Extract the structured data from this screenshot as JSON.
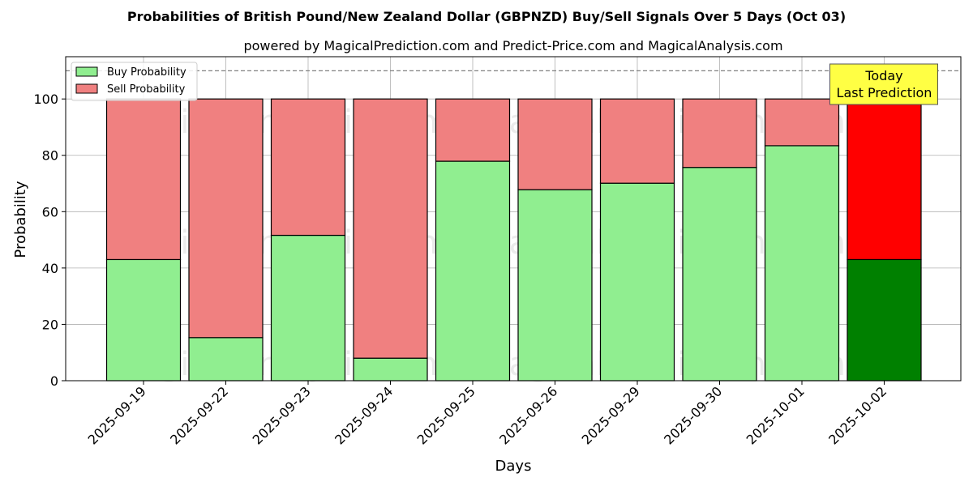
{
  "chart_data": {
    "type": "bar",
    "stacked": true,
    "title": "Probabilities of British Pound/New Zealand Dollar (GBPNZD) Buy/Sell Signals Over 5 Days (Oct 03)",
    "subtitle": "powered by MagicalPrediction.com and Predict-Price.com and MagicalAnalysis.com",
    "xlabel": "Days",
    "ylabel": "Probability",
    "ylim": [
      0,
      115
    ],
    "yticks": [
      0,
      20,
      40,
      60,
      80,
      100
    ],
    "grid": true,
    "legend_position": "top-left",
    "reference_line": 110,
    "categories": [
      "2025-09-19",
      "2025-09-22",
      "2025-09-23",
      "2025-09-24",
      "2025-09-25",
      "2025-09-26",
      "2025-09-29",
      "2025-09-30",
      "2025-10-01",
      "2025-10-02"
    ],
    "series": [
      {
        "name": "Buy Probability",
        "color": "#90ee90",
        "highlight_color": "#008000",
        "values": [
          43,
          15.3,
          51.6,
          8,
          77.9,
          67.8,
          70.1,
          75.7,
          83.4,
          43
        ]
      },
      {
        "name": "Sell Probability",
        "color": "#f08080",
        "highlight_color": "#ff0000",
        "values": [
          57,
          84.7,
          48.4,
          92,
          22.1,
          32.2,
          29.9,
          24.3,
          16.6,
          57
        ]
      }
    ],
    "highlight_index": 9,
    "annotation": {
      "line1": "Today",
      "line2": "Last Prediction",
      "color": "#ffff44"
    },
    "watermarks": [
      "MagicalAnalysis.com",
      "MagicalPrediction.com"
    ]
  }
}
